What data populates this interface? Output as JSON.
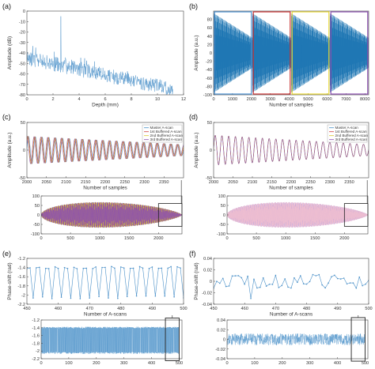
{
  "panel_labels": [
    "(a)",
    "(b)",
    "(c)",
    "(d)",
    "(e)",
    "(f)"
  ],
  "chart_data": [
    {
      "id": "a",
      "type": "line",
      "xlabel": "Depth (mm)",
      "ylabel": "Amplitude (dB)",
      "xlim": [
        0,
        12
      ],
      "ylim": [
        -80,
        0
      ],
      "xticks": [
        0,
        2,
        4,
        6,
        8,
        10,
        12
      ],
      "yticks": [
        0,
        -10,
        -20,
        -30,
        -40,
        -50,
        -60,
        -70,
        -80
      ],
      "color": "#4a90c8",
      "series": [
        {
          "description": "A-scan depth profile; noise floor decaying from about -45 dB near 0 mm to about -75 dB near 11 mm, isolated peak near 2.6 mm at about -5 dB",
          "peak_x": 2.6,
          "peak_y": -5,
          "floor_start": -45,
          "floor_end": -75,
          "x_end": 11.2
        }
      ]
    },
    {
      "id": "b",
      "type": "line",
      "xlabel": "Number of samples",
      "ylabel": "Amplitude (a.u.)",
      "xlim": [
        0,
        8200
      ],
      "ylim": [
        -100,
        100
      ],
      "xticks": [
        0,
        1000,
        2000,
        3000,
        4000,
        5000,
        6000,
        7000,
        8000
      ],
      "yticks": [
        80,
        60,
        40,
        20,
        0,
        -20,
        -40,
        -60,
        -80,
        -100
      ],
      "color": "#1f77b4",
      "segments": [
        {
          "x0": 0,
          "x1": 2050,
          "box_color": "#4a90d0"
        },
        {
          "x0": 2050,
          "x1": 4100,
          "box_color": "#c83232"
        },
        {
          "x0": 4100,
          "x1": 6150,
          "box_color": "#e8d832"
        },
        {
          "x0": 6150,
          "x1": 8200,
          "box_color": "#8c4fb0"
        }
      ],
      "envelope_max": 95
    },
    {
      "id": "c",
      "type": "line",
      "xlabel": "Number of samples",
      "ylabel": "Amplitude (a.u.)",
      "xlim": [
        2000,
        2400
      ],
      "ylim": [
        -50,
        50
      ],
      "xticks": [
        2000,
        2050,
        2100,
        2150,
        2200,
        2250,
        2300,
        2350
      ],
      "yticks": [
        50,
        0,
        -50
      ],
      "legend": [
        "Master A-scan",
        "1st Buffered A-scan",
        "2nd Buffered A-scan",
        "3rd Buffered A-scan"
      ],
      "legend_position": "top-right",
      "colors": [
        "#4a90c8",
        "#d04040",
        "#d8c830",
        "#8c4fb0"
      ],
      "cycles": 23,
      "amp_start": 25,
      "amp_end": 10,
      "phase_offsets": [
        0,
        0.5,
        0.9,
        1.3
      ]
    },
    {
      "id": "d",
      "type": "line",
      "xlabel": "Number of samples",
      "ylabel": "Amplitude (a.u.)",
      "xlim": [
        2000,
        2400
      ],
      "ylim": [
        -50,
        50
      ],
      "xticks": [
        2000,
        2050,
        2100,
        2150,
        2200,
        2250,
        2300,
        2350
      ],
      "yticks": [
        50,
        0,
        -50
      ],
      "legend": [
        "Master A-scan",
        "1st Buffered A-scan",
        "2nd Buffered A-scan",
        "3rd Buffered A-scan"
      ],
      "legend_position": "top-right",
      "colors": [
        "#4a90c8",
        "#d04040",
        "#d8c830",
        "#8c4fb0"
      ],
      "cycles": 23,
      "amp_start": 27,
      "amp_end": 10,
      "phase_offsets": [
        0,
        0.06,
        0.1,
        0.14
      ]
    },
    {
      "id": "c-inset",
      "type": "line",
      "xlim": [
        0,
        2400
      ],
      "ylim": [
        -100,
        100
      ],
      "xticks": [
        0,
        500,
        1000,
        1500,
        2000
      ],
      "yticks": [
        100,
        50,
        0,
        -50,
        -100
      ],
      "colors": [
        "#4a90c8",
        "#d04040",
        "#d8c830",
        "#8c4fb0"
      ],
      "zoom_box": [
        2000,
        2400,
        -60,
        60
      ],
      "envelope_max": 80
    },
    {
      "id": "d-inset",
      "type": "line",
      "xlim": [
        0,
        2400
      ],
      "ylim": [
        -100,
        100
      ],
      "xticks": [
        0,
        500,
        1000,
        1500,
        2000
      ],
      "yticks": [
        100,
        50,
        0,
        -50,
        -100
      ],
      "colors": [
        "#e0a8c8",
        "#c8a8d8",
        "#f0c0d0"
      ],
      "zoom_box": [
        2000,
        2400,
        -60,
        60
      ],
      "envelope_max": 80
    },
    {
      "id": "e",
      "type": "line",
      "xlabel": "Number of A-scans",
      "ylabel": "Phase-shift (rad)",
      "xlim": [
        450,
        500
      ],
      "ylim": [
        -2.2,
        -1.2
      ],
      "xticks": [
        450,
        460,
        470,
        480,
        490,
        500
      ],
      "yticks": [
        -1.2,
        -1.4,
        -1.6,
        -1.8,
        -2.0,
        -2.2
      ],
      "color": "#4a90c8",
      "series": [
        {
          "description": "sawtooth phase-shift: values near -1.4 rad with periodic drops to about -2.05 rad every 3 A-scans",
          "high": -1.4,
          "low": -2.05,
          "period": 3
        }
      ]
    },
    {
      "id": "f",
      "type": "line",
      "xlabel": "Number of A-scans",
      "ylabel": "Phase-shift (rad)",
      "xlim": [
        450,
        500
      ],
      "ylim": [
        -0.04,
        0.04
      ],
      "xticks": [
        450,
        460,
        470,
        480,
        490,
        500
      ],
      "yticks": [
        0.04,
        0.02,
        0,
        -0.02,
        -0.04
      ],
      "color": "#4a90c8",
      "series": [
        {
          "description": "noisy phase-shift fluctuating around 0 rad within about ±0.02 rad, one dip near 462 to about -0.03",
          "center": 0,
          "spread": 0.012
        }
      ]
    },
    {
      "id": "e-inset",
      "type": "line",
      "xlim": [
        0,
        510
      ],
      "ylim": [
        -2.2,
        -1.2
      ],
      "xticks": [
        0,
        100,
        200,
        300,
        400,
        500
      ],
      "yticks": [
        -1.2,
        -1.4,
        -1.6,
        -1.8,
        -2.0,
        -2.2
      ],
      "color": "#4a90c8",
      "zoom_box": [
        450,
        500,
        -2.25,
        -1.15
      ],
      "band": [
        -1.4,
        -2.05
      ]
    },
    {
      "id": "f-inset",
      "type": "line",
      "xlim": [
        0,
        510
      ],
      "ylim": [
        -0.04,
        0.04
      ],
      "xticks": [
        0,
        100,
        200,
        300,
        400,
        500
      ],
      "yticks": [
        0.04,
        0.02,
        0,
        -0.02,
        -0.04
      ],
      "color": "#4a90c8",
      "zoom_box": [
        450,
        500,
        -0.045,
        0.045
      ],
      "center": 0,
      "spread": 0.012
    }
  ]
}
